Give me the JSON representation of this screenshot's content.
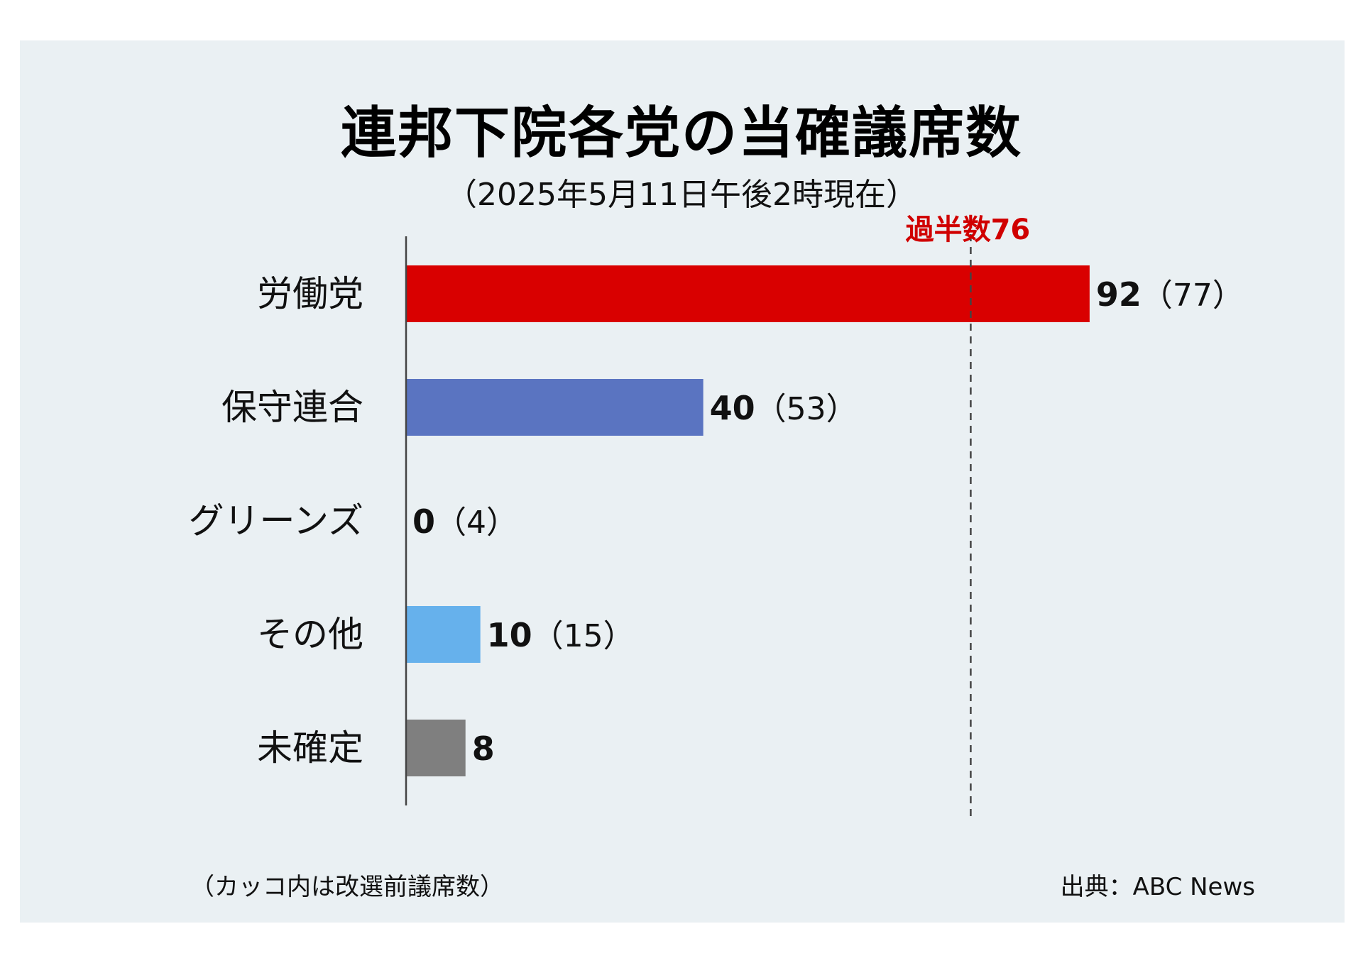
{
  "title": "連邦下院各党の当確議席数",
  "subtitle": "（2025年5月11日午後2時現在）",
  "note": "（カッコ内は改選前議席数）",
  "source": "出典：ABC News",
  "chart_data": {
    "type": "bar",
    "orientation": "horizontal",
    "categories": [
      "労働党",
      "保守連合",
      "グリーンズ",
      "その他",
      "未確定"
    ],
    "values": [
      92,
      40,
      0,
      10,
      8
    ],
    "previous_labels": [
      "（77）",
      "（53）",
      "（4）",
      "（15）",
      ""
    ],
    "colors": [
      "#d90000",
      "#5a74c1",
      "#5a74c1",
      "#66b1ec",
      "#7f7f7f"
    ],
    "reference_line": {
      "value": 76,
      "label": "過半数76",
      "color": "#d00000"
    },
    "xlim": [
      0,
      103
    ],
    "grid": false
  }
}
